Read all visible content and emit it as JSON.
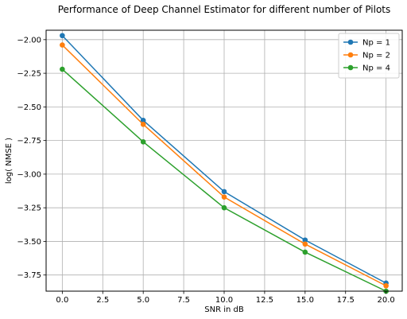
{
  "chart_data": {
    "type": "line",
    "title": "Performance of Deep Channel Estimator for different number of Pilots",
    "xlabel": "SNR in dB",
    "ylabel": "log( NMSE )",
    "x": [
      0,
      5,
      10,
      15,
      20
    ],
    "xlim": [
      -1,
      21
    ],
    "ylim": [
      -3.87,
      -1.93
    ],
    "xticks": [
      0,
      2.5,
      5,
      7.5,
      10,
      12.5,
      15,
      17.5,
      20
    ],
    "xtick_labels": [
      "0.0",
      "2.5",
      "5.0",
      "7.5",
      "10.0",
      "12.5",
      "15.0",
      "17.5",
      "20.0"
    ],
    "yticks": [
      -2.0,
      -2.25,
      -2.5,
      -2.75,
      -3.0,
      -3.25,
      -3.5,
      -3.75
    ],
    "ytick_labels": [
      "−2.00",
      "−2.25",
      "−2.50",
      "−2.75",
      "−3.00",
      "−3.25",
      "−3.50",
      "−3.75"
    ],
    "grid": true,
    "legend_position": "top-right",
    "series": [
      {
        "name": "Np = 1",
        "color": "#1f77b4",
        "marker": "circle",
        "values": [
          -1.97,
          -2.6,
          -3.13,
          -3.49,
          -3.81
        ]
      },
      {
        "name": "Np = 2",
        "color": "#ff7f0e",
        "marker": "circle",
        "values": [
          -2.04,
          -2.63,
          -3.17,
          -3.52,
          -3.83
        ]
      },
      {
        "name": "Np = 4",
        "color": "#2ca02c",
        "marker": "circle",
        "values": [
          -2.22,
          -2.76,
          -3.25,
          -3.58,
          -3.87
        ]
      }
    ]
  }
}
